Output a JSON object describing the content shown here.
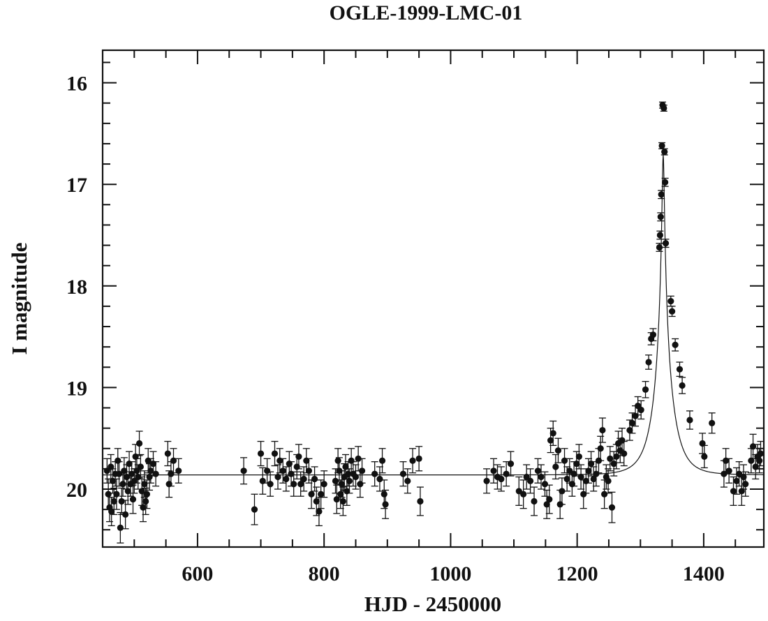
{
  "chart_data": {
    "type": "scatter",
    "title": "OGLE-1999-LMC-01",
    "xlabel": "HJD - 2450000",
    "ylabel": "I magnitude",
    "xlim": [
      450,
      1495
    ],
    "ylim": [
      20.57,
      15.68
    ],
    "y_inverted": true,
    "x_ticks": [
      600,
      800,
      1000,
      1200,
      1400
    ],
    "y_ticks": [
      16,
      17,
      18,
      19,
      20
    ],
    "x_tick_labels": [
      "600",
      "800",
      "1000",
      "1200",
      "1400"
    ],
    "y_tick_labels": [
      "16",
      "17",
      "18",
      "19",
      "20"
    ],
    "grid": false,
    "colors": {
      "ink": "#111111"
    },
    "model_curve": {
      "t0": 1336,
      "tE": 28,
      "u0": 0.055,
      "baseline": 19.86
    },
    "series": [
      {
        "points": [
          [
            457,
            19.82,
            0.12
          ],
          [
            459,
            20.05,
            0.15
          ],
          [
            461,
            20.18,
            0.14
          ],
          [
            463,
            19.78,
            0.12
          ],
          [
            464,
            20.22,
            0.14
          ],
          [
            466,
            19.92,
            0.12
          ],
          [
            468,
            20.12,
            0.13
          ],
          [
            470,
            19.85,
            0.12
          ],
          [
            472,
            20.05,
            0.15
          ],
          [
            474,
            19.72,
            0.12
          ],
          [
            476,
            19.85,
            0.12
          ],
          [
            478,
            20.38,
            0.15
          ],
          [
            480,
            20.12,
            0.13
          ],
          [
            482,
            19.95,
            0.12
          ],
          [
            484,
            19.82,
            0.13
          ],
          [
            486,
            20.25,
            0.14
          ],
          [
            488,
            19.88,
            0.12
          ],
          [
            490,
            20.02,
            0.13
          ],
          [
            492,
            19.75,
            0.12
          ],
          [
            494,
            19.95,
            0.12
          ],
          [
            496,
            19.85,
            0.12
          ],
          [
            498,
            20.1,
            0.14
          ],
          [
            500,
            19.92,
            0.12
          ],
          [
            502,
            19.68,
            0.12
          ],
          [
            504,
            19.82,
            0.12
          ],
          [
            506,
            19.88,
            0.12
          ],
          [
            508,
            19.55,
            0.12
          ],
          [
            510,
            19.78,
            0.12
          ],
          [
            512,
            20.02,
            0.14
          ],
          [
            514,
            20.18,
            0.14
          ],
          [
            516,
            19.95,
            0.13
          ],
          [
            518,
            20.12,
            0.13
          ],
          [
            520,
            20.05,
            0.14
          ],
          [
            522,
            19.72,
            0.12
          ],
          [
            524,
            19.88,
            0.13
          ],
          [
            526,
            19.82,
            0.12
          ],
          [
            530,
            19.75,
            0.12
          ],
          [
            534,
            19.85,
            0.12
          ],
          [
            553,
            19.65,
            0.12
          ],
          [
            555,
            19.95,
            0.13
          ],
          [
            558,
            19.85,
            0.12
          ],
          [
            562,
            19.72,
            0.12
          ],
          [
            570,
            19.82,
            0.12
          ],
          [
            673,
            19.82,
            0.13
          ],
          [
            690,
            20.2,
            0.15
          ],
          [
            700,
            19.65,
            0.12
          ],
          [
            703,
            19.92,
            0.13
          ],
          [
            710,
            19.82,
            0.12
          ],
          [
            715,
            19.95,
            0.12
          ],
          [
            722,
            19.65,
            0.12
          ],
          [
            727,
            19.88,
            0.12
          ],
          [
            730,
            19.72,
            0.12
          ],
          [
            735,
            19.82,
            0.12
          ],
          [
            740,
            19.9,
            0.12
          ],
          [
            745,
            19.75,
            0.12
          ],
          [
            748,
            19.85,
            0.12
          ],
          [
            752,
            19.95,
            0.12
          ],
          [
            757,
            19.78,
            0.12
          ],
          [
            760,
            19.68,
            0.12
          ],
          [
            763,
            19.95,
            0.12
          ],
          [
            768,
            19.9,
            0.12
          ],
          [
            772,
            19.72,
            0.12
          ],
          [
            776,
            19.82,
            0.12
          ],
          [
            780,
            20.05,
            0.14
          ],
          [
            785,
            19.9,
            0.12
          ],
          [
            788,
            20.12,
            0.14
          ],
          [
            792,
            20.22,
            0.14
          ],
          [
            795,
            20.05,
            0.14
          ],
          [
            800,
            19.95,
            0.13
          ],
          [
            818,
            19.92,
            0.12
          ],
          [
            820,
            20.1,
            0.14
          ],
          [
            822,
            19.72,
            0.12
          ],
          [
            824,
            19.82,
            0.13
          ],
          [
            826,
            20.05,
            0.14
          ],
          [
            828,
            19.95,
            0.13
          ],
          [
            830,
            20.12,
            0.14
          ],
          [
            832,
            19.88,
            0.13
          ],
          [
            834,
            19.78,
            0.12
          ],
          [
            836,
            20.02,
            0.14
          ],
          [
            838,
            19.85,
            0.12
          ],
          [
            840,
            19.92,
            0.12
          ],
          [
            843,
            19.72,
            0.12
          ],
          [
            846,
            19.85,
            0.12
          ],
          [
            850,
            19.88,
            0.12
          ],
          [
            854,
            19.7,
            0.12
          ],
          [
            857,
            19.95,
            0.13
          ],
          [
            860,
            19.82,
            0.12
          ],
          [
            880,
            19.85,
            0.12
          ],
          [
            888,
            19.9,
            0.12
          ],
          [
            892,
            19.72,
            0.12
          ],
          [
            895,
            20.05,
            0.14
          ],
          [
            897,
            20.15,
            0.14
          ],
          [
            925,
            19.85,
            0.12
          ],
          [
            932,
            19.92,
            0.12
          ],
          [
            940,
            19.72,
            0.12
          ],
          [
            950,
            19.7,
            0.12
          ],
          [
            952,
            20.12,
            0.14
          ],
          [
            1057,
            19.92,
            0.12
          ],
          [
            1068,
            19.82,
            0.12
          ],
          [
            1074,
            19.88,
            0.12
          ],
          [
            1080,
            19.9,
            0.12
          ],
          [
            1088,
            19.85,
            0.12
          ],
          [
            1095,
            19.75,
            0.12
          ],
          [
            1108,
            20.02,
            0.14
          ],
          [
            1115,
            20.05,
            0.14
          ],
          [
            1120,
            19.88,
            0.12
          ],
          [
            1126,
            19.92,
            0.12
          ],
          [
            1132,
            20.12,
            0.14
          ],
          [
            1138,
            19.82,
            0.12
          ],
          [
            1143,
            19.88,
            0.12
          ],
          [
            1149,
            19.95,
            0.12
          ],
          [
            1152,
            20.15,
            0.14
          ],
          [
            1156,
            20.1,
            0.14
          ],
          [
            1158,
            19.52,
            0.12
          ],
          [
            1162,
            19.45,
            0.12
          ],
          [
            1166,
            19.78,
            0.12
          ],
          [
            1170,
            19.62,
            0.12
          ],
          [
            1173,
            20.15,
            0.14
          ],
          [
            1176,
            20.02,
            0.13
          ],
          [
            1180,
            19.72,
            0.12
          ],
          [
            1184,
            19.9,
            0.12
          ],
          [
            1188,
            19.82,
            0.12
          ],
          [
            1192,
            19.95,
            0.12
          ],
          [
            1195,
            19.85,
            0.12
          ],
          [
            1199,
            19.75,
            0.12
          ],
          [
            1203,
            19.68,
            0.12
          ],
          [
            1206,
            19.88,
            0.12
          ],
          [
            1210,
            20.05,
            0.14
          ],
          [
            1214,
            19.92,
            0.12
          ],
          [
            1218,
            19.82,
            0.12
          ],
          [
            1222,
            19.75,
            0.12
          ],
          [
            1226,
            19.9,
            0.12
          ],
          [
            1230,
            19.85,
            0.12
          ],
          [
            1234,
            19.72,
            0.12
          ],
          [
            1237,
            19.6,
            0.12
          ],
          [
            1240,
            19.42,
            0.12
          ],
          [
            1243,
            20.05,
            0.14
          ],
          [
            1246,
            19.88,
            0.12
          ],
          [
            1249,
            19.92,
            0.12
          ],
          [
            1252,
            19.7,
            0.12
          ],
          [
            1255,
            20.18,
            0.15
          ],
          [
            1258,
            19.75,
            0.12
          ],
          [
            1262,
            19.68,
            0.12
          ],
          [
            1265,
            19.55,
            0.12
          ],
          [
            1268,
            19.62,
            0.12
          ],
          [
            1271,
            19.52,
            0.12
          ],
          [
            1274,
            19.65,
            0.12
          ],
          [
            1283,
            19.42,
            0.1
          ],
          [
            1287,
            19.35,
            0.1
          ],
          [
            1292,
            19.28,
            0.1
          ],
          [
            1296,
            19.18,
            0.09
          ],
          [
            1301,
            19.22,
            0.09
          ],
          [
            1308,
            19.02,
            0.08
          ],
          [
            1313,
            18.75,
            0.07
          ],
          [
            1317,
            18.52,
            0.06
          ],
          [
            1320,
            18.48,
            0.06
          ],
          [
            1330,
            17.62,
            0.04
          ],
          [
            1331,
            17.5,
            0.04
          ],
          [
            1332,
            17.32,
            0.04
          ],
          [
            1333,
            17.1,
            0.04
          ],
          [
            1334,
            16.62,
            0.03
          ],
          [
            1335,
            16.22,
            0.03
          ],
          [
            1337,
            16.25,
            0.03
          ],
          [
            1338,
            16.68,
            0.03
          ],
          [
            1339,
            16.98,
            0.04
          ],
          [
            1340,
            17.58,
            0.04
          ],
          [
            1348,
            18.15,
            0.05
          ],
          [
            1350,
            18.25,
            0.05
          ],
          [
            1355,
            18.58,
            0.06
          ],
          [
            1362,
            18.82,
            0.07
          ],
          [
            1366,
            18.98,
            0.08
          ],
          [
            1378,
            19.32,
            0.09
          ],
          [
            1398,
            19.55,
            0.1
          ],
          [
            1401,
            19.68,
            0.11
          ],
          [
            1413,
            19.35,
            0.1
          ],
          [
            1432,
            19.85,
            0.13
          ],
          [
            1435,
            19.72,
            0.12
          ],
          [
            1440,
            19.82,
            0.12
          ],
          [
            1447,
            20.02,
            0.14
          ],
          [
            1452,
            19.92,
            0.13
          ],
          [
            1456,
            19.85,
            0.12
          ],
          [
            1460,
            20.02,
            0.14
          ],
          [
            1463,
            19.88,
            0.12
          ],
          [
            1466,
            19.95,
            0.12
          ],
          [
            1475,
            19.72,
            0.12
          ],
          [
            1478,
            19.58,
            0.12
          ],
          [
            1482,
            19.78,
            0.12
          ],
          [
            1485,
            19.68,
            0.12
          ],
          [
            1488,
            19.72,
            0.12
          ],
          [
            1490,
            19.65,
            0.12
          ]
        ]
      }
    ]
  }
}
